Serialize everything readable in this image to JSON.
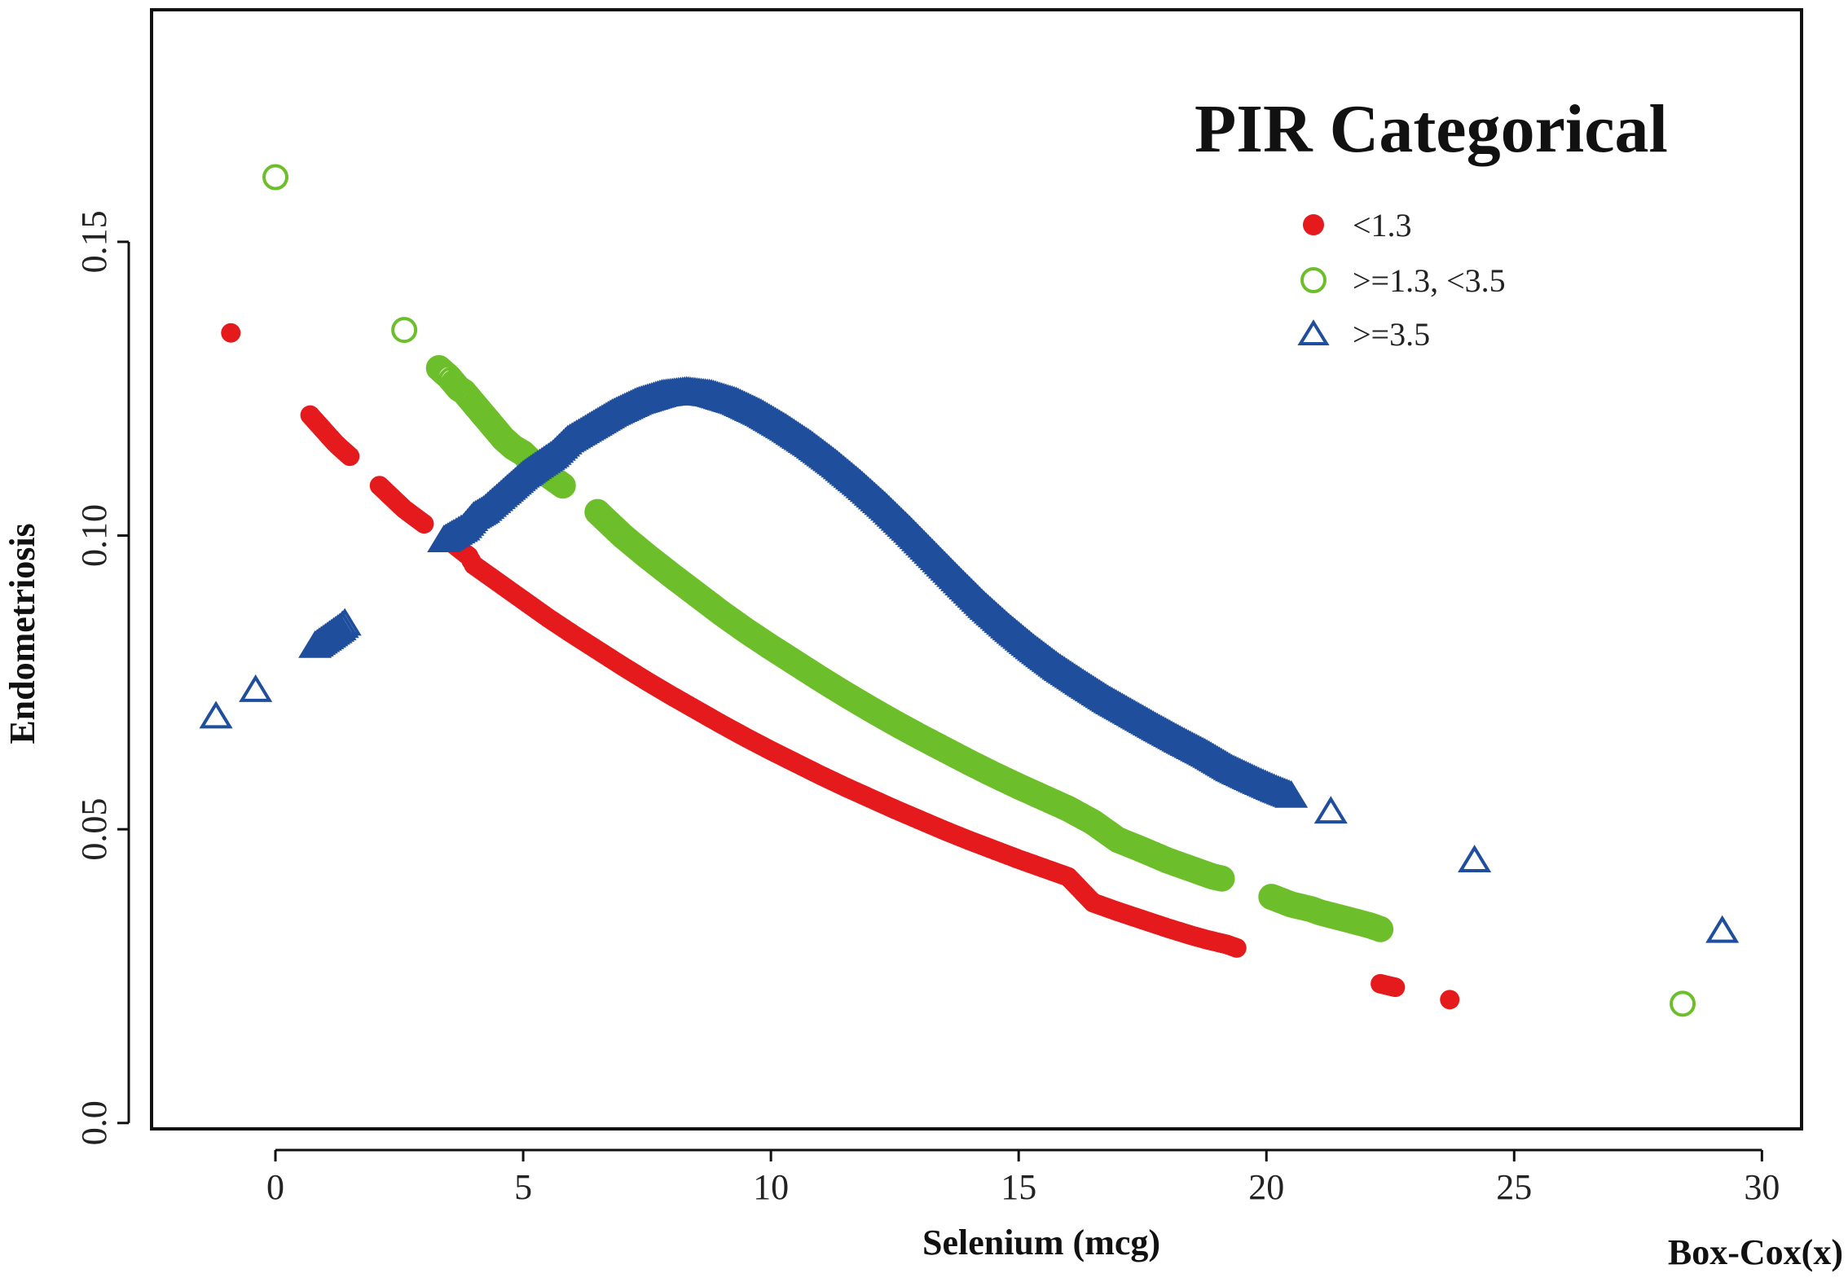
{
  "chart_data": {
    "type": "scatter",
    "title": "",
    "xlabel": "Selenium (mcg)",
    "ylabel": "Endometriosis",
    "transform_label": "Box-Cox(x)",
    "xlim": [
      -2.5,
      30.8
    ],
    "ylim": [
      -0.001,
      0.1895
    ],
    "xticks": [
      0,
      5,
      10,
      15,
      20,
      25,
      30
    ],
    "xtick_labels": [
      "0",
      "5",
      "10",
      "15",
      "20",
      "25",
      "30"
    ],
    "yticks": [
      0.0,
      0.05,
      0.1,
      0.15
    ],
    "ytick_labels": [
      "0.0",
      "0.05",
      "0.10",
      "0.15"
    ],
    "grid": false,
    "legend": {
      "title": "PIR Categorical",
      "position": "top-right",
      "entries": [
        {
          "label": "<1.3",
          "series": "low"
        },
        {
          "label": ">=1.3, <3.5",
          "series": "mid"
        },
        {
          "label": ">=3.5",
          "series": "high"
        }
      ]
    },
    "series": [
      {
        "id": "low",
        "name": "<1.3",
        "marker": "filled-circle",
        "color": "#e41a1c",
        "points": [
          [
            -0.9,
            0.1345
          ],
          [
            0.7,
            0.1205
          ],
          [
            1.2,
            0.1158
          ],
          [
            1.3,
            0.115
          ],
          [
            1.5,
            0.1135
          ],
          [
            2.1,
            0.1085
          ],
          [
            2.6,
            0.1045
          ],
          [
            3.0,
            0.102
          ],
          [
            3.6,
            0.0985
          ],
          [
            3.9,
            0.0965
          ],
          [
            4.0,
            0.095
          ],
          [
            4.5,
            0.092
          ],
          [
            5.0,
            0.089
          ],
          [
            5.5,
            0.086
          ],
          [
            6.0,
            0.0832
          ],
          [
            6.5,
            0.0805
          ],
          [
            7.0,
            0.0778
          ],
          [
            7.5,
            0.0752
          ],
          [
            8.0,
            0.0727
          ],
          [
            8.5,
            0.0703
          ],
          [
            9.0,
            0.0679
          ],
          [
            9.5,
            0.0656
          ],
          [
            10.0,
            0.0634
          ],
          [
            10.5,
            0.0613
          ],
          [
            11.0,
            0.0592
          ],
          [
            11.5,
            0.0572
          ],
          [
            12.0,
            0.0553
          ],
          [
            12.5,
            0.0534
          ],
          [
            13.0,
            0.0516
          ],
          [
            13.5,
            0.0498
          ],
          [
            14.0,
            0.0481
          ],
          [
            14.5,
            0.0465
          ],
          [
            15.0,
            0.0449
          ],
          [
            15.5,
            0.0434
          ],
          [
            16.0,
            0.0419
          ],
          [
            16.5,
            0.0375
          ],
          [
            17.0,
            0.036
          ],
          [
            17.5,
            0.0346
          ],
          [
            18.0,
            0.0332
          ],
          [
            18.5,
            0.0319
          ],
          [
            18.8,
            0.0312
          ],
          [
            19.2,
            0.0304
          ],
          [
            19.4,
            0.0298
          ],
          [
            22.3,
            0.0237
          ],
          [
            22.6,
            0.0231
          ],
          [
            23.7,
            0.021
          ]
        ]
      },
      {
        "id": "mid",
        "name": ">=1.3, <3.5",
        "marker": "open-circle",
        "color": "#6cbf2a",
        "points": [
          [
            0.0,
            0.161
          ],
          [
            2.6,
            0.135
          ],
          [
            3.3,
            0.1285
          ],
          [
            3.5,
            0.127
          ],
          [
            3.6,
            0.126
          ],
          [
            3.7,
            0.125
          ],
          [
            3.8,
            0.1245
          ],
          [
            4.1,
            0.1215
          ],
          [
            4.4,
            0.1185
          ],
          [
            4.6,
            0.1165
          ],
          [
            4.8,
            0.115
          ],
          [
            5.0,
            0.114
          ],
          [
            5.3,
            0.1115
          ],
          [
            5.8,
            0.1085
          ],
          [
            6.5,
            0.104
          ],
          [
            7.0,
            0.1
          ],
          [
            7.5,
            0.0965
          ],
          [
            8.0,
            0.0932
          ],
          [
            8.5,
            0.09
          ],
          [
            9.0,
            0.0868
          ],
          [
            9.5,
            0.0838
          ],
          [
            10.0,
            0.081
          ],
          [
            10.5,
            0.0783
          ],
          [
            11.0,
            0.0756
          ],
          [
            11.5,
            0.073
          ],
          [
            12.0,
            0.0705
          ],
          [
            12.5,
            0.0681
          ],
          [
            13.0,
            0.0658
          ],
          [
            13.5,
            0.0636
          ],
          [
            14.0,
            0.0614
          ],
          [
            14.5,
            0.0593
          ],
          [
            15.0,
            0.0573
          ],
          [
            15.5,
            0.0554
          ],
          [
            16.0,
            0.0535
          ],
          [
            16.5,
            0.0512
          ],
          [
            17.0,
            0.0482
          ],
          [
            17.5,
            0.0465
          ],
          [
            18.0,
            0.0447
          ],
          [
            18.5,
            0.0432
          ],
          [
            18.9,
            0.042
          ],
          [
            19.1,
            0.0416
          ],
          [
            20.1,
            0.0385
          ],
          [
            20.5,
            0.0372
          ],
          [
            20.9,
            0.0364
          ],
          [
            21.1,
            0.0358
          ],
          [
            21.7,
            0.0345
          ],
          [
            22.1,
            0.0336
          ],
          [
            22.3,
            0.033
          ],
          [
            28.4,
            0.0203
          ]
        ]
      },
      {
        "id": "high",
        "name": ">=3.5",
        "marker": "open-triangle",
        "color": "#1f4e9c",
        "points": [
          [
            -1.2,
            0.069
          ],
          [
            -0.4,
            0.0735
          ],
          [
            0.8,
            0.081
          ],
          [
            1.3,
            0.084
          ],
          [
            1.4,
            0.0848
          ],
          [
            3.4,
            0.099
          ],
          [
            3.6,
            0.1
          ],
          [
            3.8,
            0.101
          ],
          [
            4.0,
            0.103
          ],
          [
            4.2,
            0.104
          ],
          [
            4.6,
            0.107
          ],
          [
            4.8,
            0.1085
          ],
          [
            5.0,
            0.11
          ],
          [
            5.2,
            0.1112
          ],
          [
            5.6,
            0.1135
          ],
          [
            5.9,
            0.116
          ],
          [
            6.3,
            0.118
          ],
          [
            6.8,
            0.1205
          ],
          [
            7.3,
            0.1225
          ],
          [
            7.8,
            0.1238
          ],
          [
            8.3,
            0.1243
          ],
          [
            8.8,
            0.1238
          ],
          [
            9.3,
            0.1225
          ],
          [
            9.8,
            0.1205
          ],
          [
            10.3,
            0.118
          ],
          [
            10.8,
            0.1152
          ],
          [
            11.3,
            0.112
          ],
          [
            11.8,
            0.1085
          ],
          [
            12.3,
            0.1047
          ],
          [
            12.8,
            0.1006
          ],
          [
            13.3,
            0.0963
          ],
          [
            13.8,
            0.092
          ],
          [
            14.3,
            0.0878
          ],
          [
            14.8,
            0.084
          ],
          [
            15.3,
            0.0805
          ],
          [
            15.8,
            0.0773
          ],
          [
            16.3,
            0.0745
          ],
          [
            16.8,
            0.0718
          ],
          [
            17.3,
            0.0694
          ],
          [
            17.8,
            0.067
          ],
          [
            18.3,
            0.0647
          ],
          [
            18.8,
            0.0625
          ],
          [
            19.3,
            0.06
          ],
          [
            19.8,
            0.058
          ],
          [
            20.2,
            0.0565
          ],
          [
            20.5,
            0.0555
          ],
          [
            21.3,
            0.0528
          ],
          [
            24.2,
            0.0445
          ],
          [
            29.2,
            0.0325
          ]
        ]
      }
    ]
  }
}
